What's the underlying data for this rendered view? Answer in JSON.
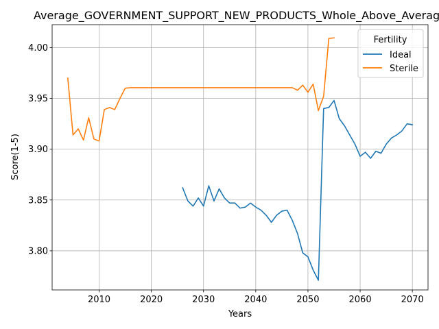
{
  "chart_data": {
    "type": "line",
    "title": "Average_GOVERNMENT_SUPPORT_NEW_PRODUCTS_Whole_Above_Average",
    "xlabel": "Years",
    "ylabel": "Score(1-5)",
    "xlim": [
      2001,
      2073
    ],
    "ylim": [
      3.7615,
      4.0225
    ],
    "xticks": [
      2010,
      2020,
      2030,
      2040,
      2050,
      2060,
      2070
    ],
    "yticks": [
      3.8,
      3.85,
      3.9,
      3.95,
      4.0
    ],
    "ytick_labels": [
      "3.80",
      "3.85",
      "3.90",
      "3.95",
      "4.00"
    ],
    "grid": true,
    "legend": {
      "title": "Fertility",
      "placement": "top-right"
    },
    "series": [
      {
        "name": "Ideal",
        "color": "#1f77b4",
        "x": [
          2026,
          2027,
          2028,
          2029,
          2030,
          2031,
          2032,
          2033,
          2034,
          2035,
          2036,
          2037,
          2038,
          2039,
          2040,
          2041,
          2042,
          2043,
          2044,
          2045,
          2046,
          2047,
          2048,
          2049,
          2050,
          2051,
          2052,
          2053,
          2054,
          2055,
          2056,
          2057,
          2058,
          2059,
          2060,
          2061,
          2062,
          2063,
          2064,
          2065,
          2066,
          2067,
          2068,
          2069,
          2070
        ],
        "y": [
          3.862,
          3.849,
          3.844,
          3.852,
          3.844,
          3.864,
          3.849,
          3.861,
          3.852,
          3.847,
          3.847,
          3.842,
          3.843,
          3.847,
          3.843,
          3.84,
          3.835,
          3.828,
          3.835,
          3.839,
          3.84,
          3.83,
          3.817,
          3.798,
          3.794,
          3.781,
          3.771,
          3.94,
          3.941,
          3.948,
          3.93,
          3.923,
          3.914,
          3.905,
          3.893,
          3.897,
          3.891,
          3.898,
          3.896,
          3.905,
          3.911,
          3.914,
          3.918,
          3.925,
          3.924
        ]
      },
      {
        "name": "Sterile",
        "color": "#ff7f0e",
        "x": [
          2004,
          2005,
          2006,
          2007,
          2008,
          2009,
          2010,
          2011,
          2012,
          2013,
          2014,
          2015,
          2016,
          2017,
          2018,
          2019,
          2020,
          2021,
          2022,
          2023,
          2024,
          2025,
          2026,
          2027,
          2028,
          2029,
          2030,
          2031,
          2032,
          2033,
          2034,
          2035,
          2036,
          2037,
          2038,
          2039,
          2040,
          2041,
          2042,
          2043,
          2044,
          2045,
          2046,
          2047,
          2048,
          2049,
          2050,
          2051,
          2052,
          2053,
          2054,
          2055
        ],
        "y": [
          3.97,
          3.914,
          3.92,
          3.909,
          3.931,
          3.91,
          3.908,
          3.939,
          3.941,
          3.939,
          3.95,
          3.96,
          3.9605,
          3.9605,
          3.9605,
          3.9605,
          3.9605,
          3.9605,
          3.9605,
          3.9605,
          3.9605,
          3.9605,
          3.9605,
          3.9605,
          3.9605,
          3.9605,
          3.9605,
          3.9605,
          3.9605,
          3.9605,
          3.9605,
          3.9605,
          3.9605,
          3.9605,
          3.9605,
          3.9605,
          3.9605,
          3.9605,
          3.9605,
          3.9605,
          3.9605,
          3.9605,
          3.9605,
          3.9605,
          3.958,
          3.963,
          3.956,
          3.964,
          3.938,
          3.952,
          4.009,
          4.0095
        ]
      }
    ]
  }
}
